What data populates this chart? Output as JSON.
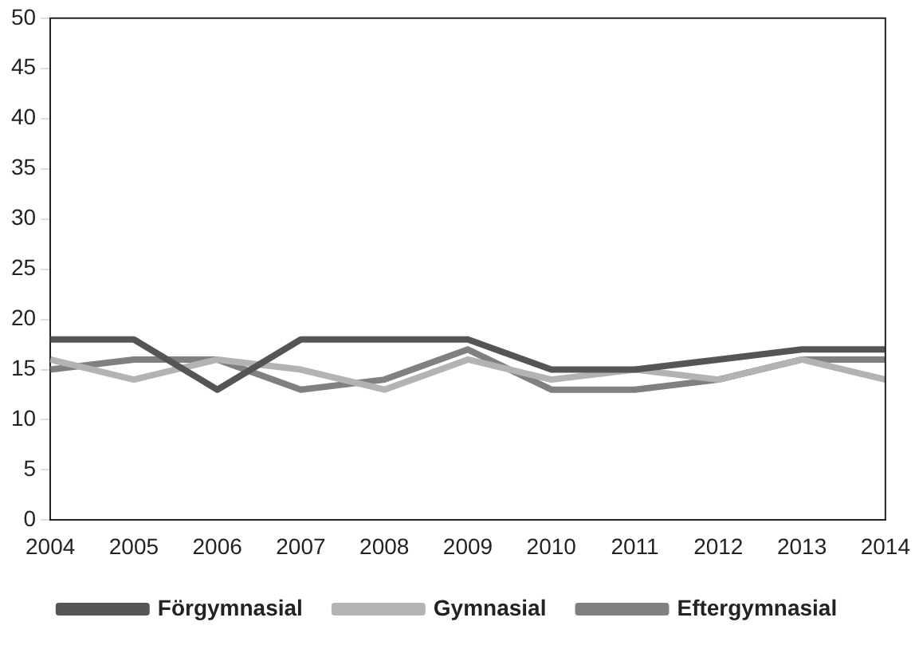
{
  "chart_data": {
    "type": "line",
    "x": [
      2004,
      2005,
      2006,
      2007,
      2008,
      2009,
      2010,
      2011,
      2012,
      2013,
      2014
    ],
    "xlim": [
      2004,
      2014
    ],
    "xticks": [
      2004,
      2005,
      2006,
      2007,
      2008,
      2009,
      2010,
      2011,
      2012,
      2013,
      2014
    ],
    "ylim": [
      0,
      50
    ],
    "yticks": [
      0,
      5,
      10,
      15,
      20,
      25,
      30,
      35,
      40,
      45,
      50
    ],
    "series": [
      {
        "name": "Förgymnasial",
        "color": "#555555",
        "values": [
          18,
          18,
          13,
          18,
          18,
          18,
          15,
          15,
          16,
          17,
          17
        ]
      },
      {
        "name": "Gymnasial",
        "color": "#b3b3b3",
        "values": [
          16,
          14,
          16,
          15,
          13,
          16,
          14,
          15,
          14,
          16,
          14
        ]
      },
      {
        "name": "Eftergymnasial",
        "color": "#808080",
        "values": [
          15,
          16,
          16,
          13,
          14,
          17,
          13,
          13,
          14,
          16,
          16
        ]
      }
    ],
    "grid": false,
    "legend": "bottom",
    "marker": "none",
    "line_style": "solid"
  }
}
